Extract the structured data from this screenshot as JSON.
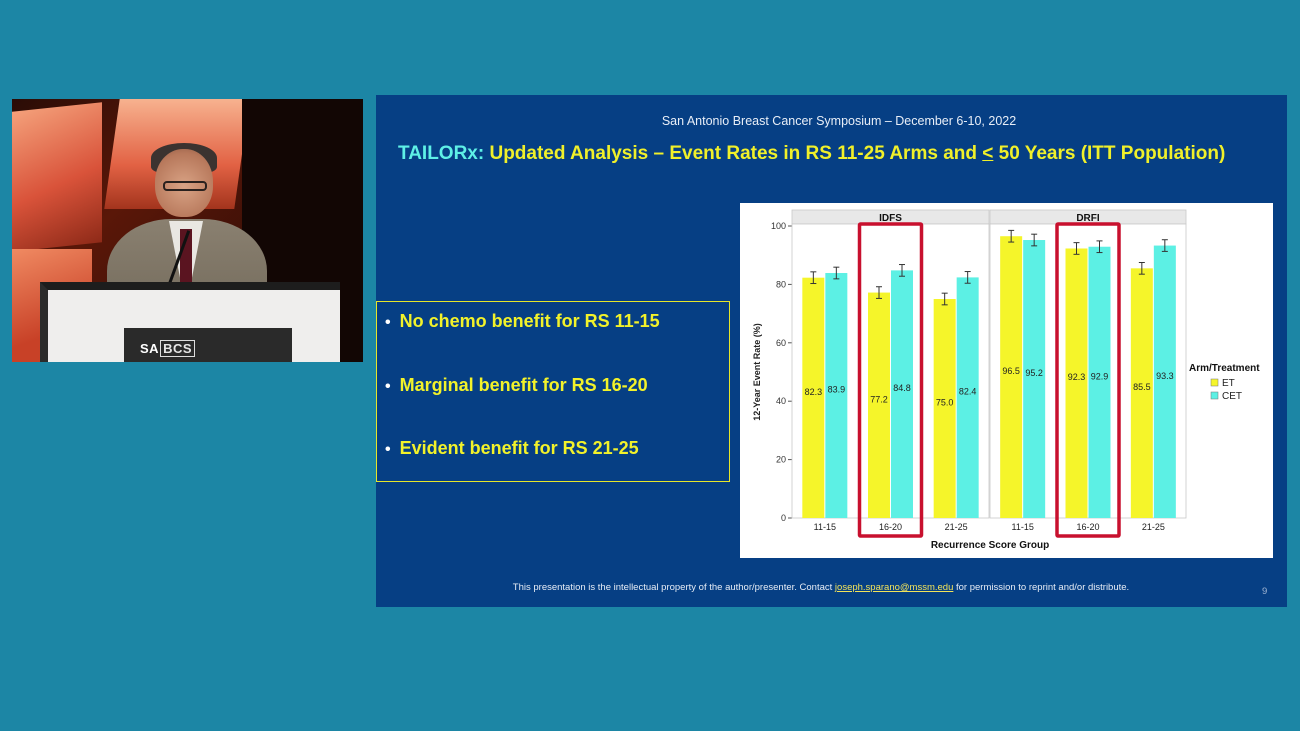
{
  "slide": {
    "conference": "San Antonio Breast Cancer Symposium – December 6-10, 2022",
    "title_prefix": "TAILORx:",
    "title_main": " Updated Analysis – Event Rates in RS 11-25 Arms and ",
    "title_le": "<",
    "title_suffix": " 50 Years (ITT Population)",
    "bullets": [
      "No chemo benefit for RS 11-15",
      "Marginal benefit for RS 16-20",
      "Evident benefit for RS 21-25"
    ],
    "footer_pre": "This presentation is the intellectual property of the author/presenter. Contact ",
    "footer_link": "joseph.sparano@mssm.edu",
    "footer_post": " for permission to reprint and/or distribute.",
    "page_number": "9"
  },
  "video": {
    "logo_sa": "SA",
    "logo_bcs": "BCS"
  },
  "chart_data": {
    "type": "bar",
    "panels": [
      {
        "title": "IDFS",
        "categories": [
          "11-15",
          "16-20",
          "21-25"
        ],
        "series": [
          {
            "name": "ET",
            "values": [
              82.3,
              77.2,
              75.0
            ],
            "labels": [
              "82.3",
              "77.2",
              "75.0"
            ]
          },
          {
            "name": "CET",
            "values": [
              83.9,
              84.8,
              82.4
            ],
            "labels": [
              "83.9",
              "84.8",
              "82.4"
            ]
          }
        ],
        "highlighted_category": "16-20"
      },
      {
        "title": "DRFI",
        "categories": [
          "11-15",
          "16-20",
          "21-25"
        ],
        "series": [
          {
            "name": "ET",
            "values": [
              96.5,
              92.3,
              85.5
            ],
            "labels": [
              "96.5",
              "92.3",
              "85.5"
            ]
          },
          {
            "name": "CET",
            "values": [
              95.2,
              92.9,
              93.3
            ],
            "labels": [
              "95.2",
              "92.9",
              "93.3"
            ]
          }
        ],
        "highlighted_category": "16-20"
      }
    ],
    "xlabel": "Recurrence Score Group",
    "ylabel": "12-Year Event Rate (%)",
    "ylim": [
      0,
      100
    ],
    "yticks": [
      "0",
      "20",
      "40",
      "60",
      "80",
      "100"
    ],
    "legend_title": "Arm/Treatment",
    "legend": [
      {
        "name": "ET",
        "color": "#f5f52a"
      },
      {
        "name": "CET",
        "color": "#5cf0e4"
      }
    ],
    "legend_position": "right",
    "highlight_color": "#c8102e",
    "error_bar_halfwidth": 2
  }
}
